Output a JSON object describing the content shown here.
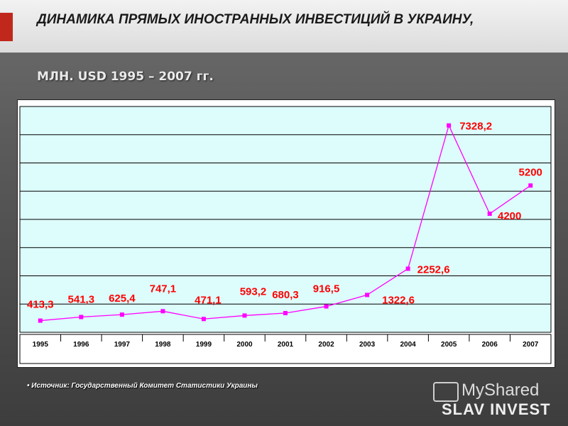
{
  "header": {
    "title": "ДИНАМИКА ПРЯМЫХ ИНОСТРАННЫХ ИНВЕСТИЦИЙ В УКРАИНУ,",
    "subtitle": "МЛН. USD 1995 – 2007 гг."
  },
  "footer": {
    "source": "• Источник: Государственный Комитет Статистики Украины"
  },
  "logo": {
    "top": "MyShared",
    "bottom": "SLAV INVEST"
  },
  "colors": {
    "plot_bg": "#ddfcfc",
    "line": "#ff00ff",
    "label": "#ff0000",
    "axis_band": "#ffffff"
  },
  "chart_data": {
    "type": "line",
    "title": "",
    "xlabel": "",
    "ylabel": "",
    "x": [
      "1995",
      "1996",
      "1997",
      "1998",
      "1999",
      "2000",
      "2001",
      "2002",
      "2003",
      "2004",
      "2005",
      "2006",
      "2007"
    ],
    "series": [
      {
        "values": [
          413.3,
          541.3,
          625.4,
          747.1,
          471.1,
          593.2,
          680.3,
          916.5,
          1322.6,
          2252.6,
          7328.2,
          4200,
          5200
        ]
      }
    ],
    "data_labels": [
      "413,3",
      "541,3",
      "625,4",
      "747,1",
      "471,1",
      "593,2",
      "680,3",
      "916,5",
      "1322,6",
      "2252,6",
      "7328,2",
      "4200",
      "5200"
    ],
    "ylim": [
      0,
      8000
    ],
    "grid": true,
    "legend": "none"
  }
}
